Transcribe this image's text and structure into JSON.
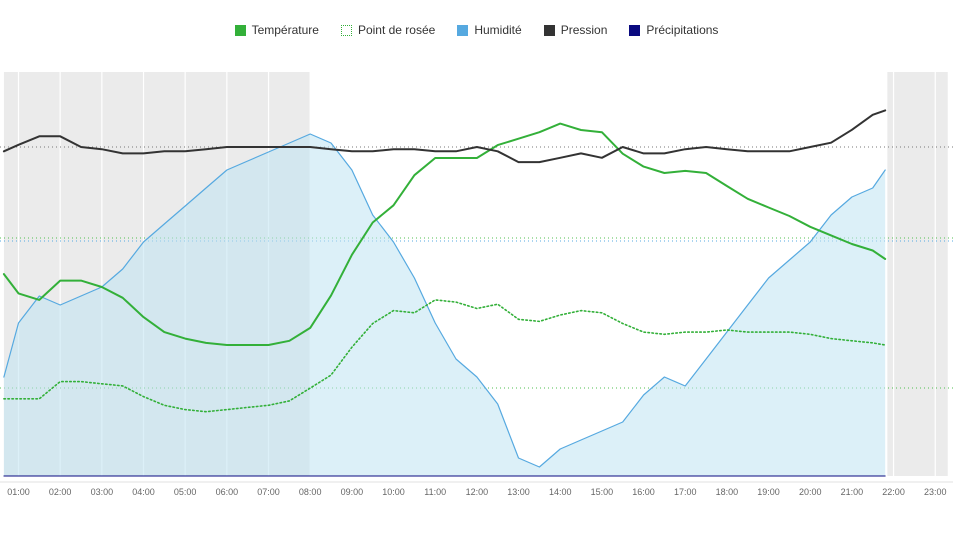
{
  "legend": [
    {
      "label": "Température",
      "color": "#33b039",
      "style": "solid"
    },
    {
      "label": "Point de rosée",
      "color": "#33b039",
      "style": "dotted"
    },
    {
      "label": "Humidité",
      "color": "#56a9e0",
      "style": "solid"
    },
    {
      "label": "Pression",
      "color": "#333333",
      "style": "solid"
    },
    {
      "label": "Précipitations",
      "color": "#0a0a80",
      "style": "solid"
    }
  ],
  "chart_data": {
    "type": "line",
    "x_unit": "hour of day",
    "x_range": [
      0.65,
      23.3
    ],
    "xtick_labels": [
      "01:00",
      "02:00",
      "03:00",
      "04:00",
      "05:00",
      "06:00",
      "07:00",
      "08:00",
      "09:00",
      "10:00",
      "11:00",
      "12:00",
      "13:00",
      "14:00",
      "15:00",
      "16:00",
      "17:00",
      "18:00",
      "19:00",
      "20:00",
      "21:00",
      "22:00",
      "23:00"
    ],
    "xtick_hours": [
      1,
      2,
      3,
      4,
      5,
      6,
      7,
      8,
      9,
      10,
      11,
      12,
      13,
      14,
      15,
      16,
      17,
      18,
      19,
      20,
      21,
      22,
      23
    ],
    "night_bands": [
      [
        0.65,
        8.0
      ],
      [
        21.85,
        23.3
      ]
    ],
    "grid": true,
    "y_axes_labeled": false,
    "series": [
      {
        "name": "Température",
        "color": "#33b039",
        "style": "solid",
        "x": [
          0.65,
          1.0,
          1.5,
          2.0,
          2.5,
          3.0,
          3.5,
          4.0,
          4.5,
          5.0,
          5.5,
          6.0,
          6.5,
          7.0,
          7.5,
          8.0,
          8.5,
          9.0,
          9.5,
          10.0,
          10.5,
          11.0,
          11.5,
          12.0,
          12.5,
          13.0,
          13.5,
          14.0,
          14.5,
          15.0,
          15.5,
          16.0,
          16.5,
          17.0,
          17.5,
          18.0,
          18.5,
          19.0,
          19.5,
          20.0,
          20.5,
          21.0,
          21.5,
          21.8
        ],
        "y": [
          12.6,
          11.7,
          11.4,
          12.3,
          12.3,
          12.0,
          11.5,
          10.6,
          9.9,
          9.6,
          9.4,
          9.3,
          9.3,
          9.3,
          9.5,
          10.1,
          11.6,
          13.5,
          15.0,
          15.8,
          17.2,
          18.0,
          18.0,
          18.0,
          18.6,
          18.9,
          19.2,
          19.6,
          19.3,
          19.2,
          18.2,
          17.6,
          17.3,
          17.4,
          17.3,
          16.7,
          16.1,
          15.7,
          15.3,
          14.8,
          14.4,
          14.0,
          13.7,
          13.3
        ]
      },
      {
        "name": "Point de rosée",
        "color": "#33b039",
        "style": "dotted",
        "x": [
          0.65,
          1.0,
          1.5,
          2.0,
          2.5,
          3.0,
          3.5,
          4.0,
          4.5,
          5.0,
          5.5,
          6.0,
          6.5,
          7.0,
          7.5,
          8.0,
          8.5,
          9.0,
          9.5,
          10.0,
          10.5,
          11.0,
          11.5,
          12.0,
          12.5,
          13.0,
          13.5,
          14.0,
          14.5,
          15.0,
          15.5,
          16.0,
          16.5,
          17.0,
          17.5,
          18.0,
          18.5,
          19.0,
          19.5,
          20.0,
          20.5,
          21.0,
          21.5,
          21.8
        ],
        "y": [
          6.8,
          6.8,
          6.8,
          7.6,
          7.6,
          7.5,
          7.4,
          6.9,
          6.5,
          6.3,
          6.2,
          6.3,
          6.4,
          6.5,
          6.7,
          7.3,
          7.9,
          9.2,
          10.3,
          10.9,
          10.8,
          11.4,
          11.3,
          11.0,
          11.2,
          10.5,
          10.4,
          10.7,
          10.9,
          10.8,
          10.3,
          9.9,
          9.8,
          9.9,
          9.9,
          10.0,
          9.9,
          9.9,
          9.9,
          9.8,
          9.6,
          9.5,
          9.4,
          9.3
        ]
      },
      {
        "name": "Humidité",
        "color": "#56a9e0",
        "style": "solid",
        "fill": true,
        "x": [
          0.65,
          1.0,
          1.5,
          2.0,
          2.5,
          3.0,
          3.5,
          4.0,
          4.5,
          5.0,
          5.5,
          6.0,
          6.5,
          7.0,
          7.5,
          8.0,
          8.5,
          9.0,
          9.5,
          10.0,
          10.5,
          11.0,
          11.5,
          12.0,
          12.5,
          13.0,
          13.5,
          14.0,
          14.5,
          15.0,
          15.5,
          16.0,
          16.5,
          17.0,
          17.5,
          18.0,
          18.5,
          19.0,
          19.5,
          20.0,
          20.5,
          21.0,
          21.5,
          21.8
        ],
        "y": [
          71,
          77,
          80,
          79,
          80,
          81,
          83,
          86,
          88,
          90,
          92,
          94,
          95,
          96,
          97,
          98,
          97,
          94,
          89,
          86,
          82,
          77,
          73,
          71,
          68,
          62,
          61,
          63,
          64,
          65,
          66,
          69,
          71,
          70,
          73,
          76,
          79,
          82,
          84,
          86,
          89,
          91,
          92,
          94
        ]
      },
      {
        "name": "Pression",
        "color": "#333333",
        "style": "solid",
        "x": [
          0.65,
          1.0,
          1.5,
          2.0,
          2.5,
          3.0,
          3.5,
          4.0,
          4.5,
          5.0,
          5.5,
          6.0,
          6.5,
          7.0,
          7.5,
          8.0,
          8.5,
          9.0,
          9.5,
          10.0,
          10.5,
          11.0,
          11.5,
          12.0,
          12.5,
          13.0,
          13.5,
          14.0,
          14.5,
          15.0,
          15.5,
          16.0,
          16.5,
          17.0,
          17.5,
          18.0,
          18.5,
          19.0,
          19.5,
          20.0,
          20.5,
          21.0,
          21.5,
          21.8
        ],
        "y": [
          1013.8,
          1014.1,
          1014.5,
          1014.5,
          1014.0,
          1013.9,
          1013.7,
          1013.7,
          1013.8,
          1013.8,
          1013.9,
          1014.0,
          1014.0,
          1014.0,
          1014.0,
          1014.0,
          1013.9,
          1013.8,
          1013.8,
          1013.9,
          1013.9,
          1013.8,
          1013.8,
          1014.0,
          1013.8,
          1013.3,
          1013.3,
          1013.5,
          1013.7,
          1013.5,
          1014.0,
          1013.7,
          1013.7,
          1013.9,
          1014.0,
          1013.9,
          1013.8,
          1013.8,
          1013.8,
          1014.0,
          1014.2,
          1014.8,
          1015.5,
          1015.7
        ]
      },
      {
        "name": "Précipitations",
        "color": "#0a0a80",
        "style": "solid",
        "x": [
          0.65,
          21.8
        ],
        "y": [
          0,
          0
        ]
      }
    ]
  }
}
